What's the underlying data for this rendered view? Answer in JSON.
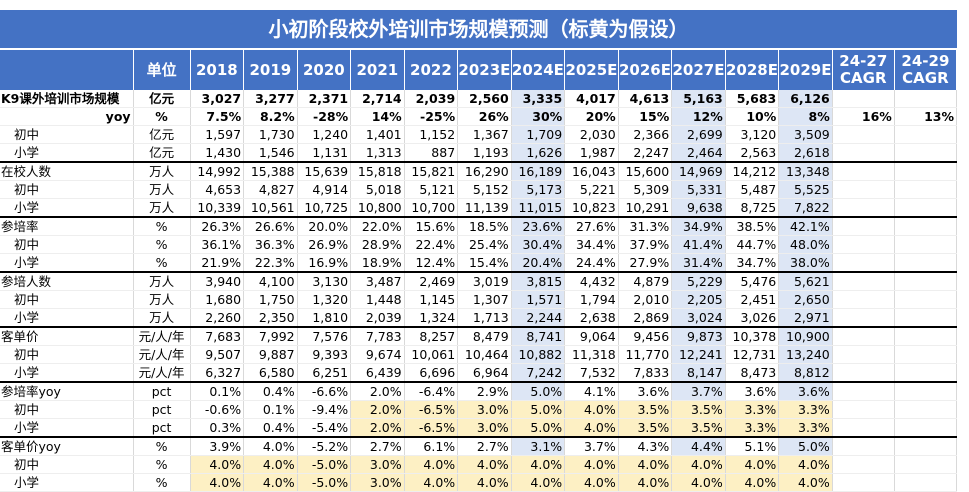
{
  "header": {
    "title": "小初阶段校外培训市场规模预测（标黄为假设）"
  },
  "table": {
    "columns": [
      "单位",
      "2018",
      "2019",
      "2020",
      "2021",
      "2022",
      "2023E",
      "2024E",
      "2025E",
      "2026E",
      "2027E",
      "2028E",
      "2029E",
      "24-27\nCAGR",
      "24-29\nCAGR"
    ],
    "rows": [
      {
        "label": "K9课外培训市场规模",
        "unit": "亿元",
        "values": [
          "3,027",
          "3,277",
          "2,371",
          "2,714",
          "2,039",
          "2,560",
          "3,335",
          "4,017",
          "4,613",
          "5,163",
          "5,683",
          "6,126"
        ]
      },
      {
        "label": "yoy",
        "unit": "%",
        "values": [
          "7.5%",
          "8.2%",
          "-28%",
          "14%",
          "-25%",
          "26%",
          "30%",
          "20%",
          "15%",
          "12%",
          "10%",
          "8%"
        ],
        "cagr": [
          "16%",
          "13%"
        ]
      },
      {
        "label": "初中",
        "unit": "亿元",
        "values": [
          "1,597",
          "1,730",
          "1,240",
          "1,401",
          "1,152",
          "1,367",
          "1,709",
          "2,030",
          "2,366",
          "2,699",
          "3,120",
          "3,509"
        ]
      },
      {
        "label": "小学",
        "unit": "亿元",
        "values": [
          "1,430",
          "1,546",
          "1,131",
          "1,313",
          "887",
          "1,193",
          "1,626",
          "1,987",
          "2,247",
          "2,464",
          "2,563",
          "2,618"
        ]
      },
      {
        "label": "在校人数",
        "unit": "万人",
        "values": [
          "14,992",
          "15,388",
          "15,639",
          "15,818",
          "15,821",
          "16,290",
          "16,189",
          "16,043",
          "15,600",
          "14,969",
          "14,212",
          "13,348"
        ]
      },
      {
        "label": "初中",
        "unit": "万人",
        "values": [
          "4,653",
          "4,827",
          "4,914",
          "5,018",
          "5,121",
          "5,152",
          "5,173",
          "5,221",
          "5,309",
          "5,331",
          "5,487",
          "5,525"
        ]
      },
      {
        "label": "小学",
        "unit": "万人",
        "values": [
          "10,339",
          "10,561",
          "10,725",
          "10,800",
          "10,700",
          "11,139",
          "11,015",
          "10,823",
          "10,291",
          "9,638",
          "8,725",
          "7,822"
        ]
      },
      {
        "label": "参培率",
        "unit": "%",
        "values": [
          "26.3%",
          "26.6%",
          "20.0%",
          "22.0%",
          "15.6%",
          "18.5%",
          "23.6%",
          "27.6%",
          "31.3%",
          "34.9%",
          "38.5%",
          "42.1%"
        ]
      },
      {
        "label": "初中",
        "unit": "%",
        "values": [
          "36.1%",
          "36.3%",
          "26.9%",
          "28.9%",
          "22.4%",
          "25.4%",
          "30.4%",
          "34.4%",
          "37.9%",
          "41.4%",
          "44.7%",
          "48.0%"
        ]
      },
      {
        "label": "小学",
        "unit": "%",
        "values": [
          "21.9%",
          "22.3%",
          "16.9%",
          "18.9%",
          "12.4%",
          "15.4%",
          "20.4%",
          "24.4%",
          "27.9%",
          "31.4%",
          "34.7%",
          "38.0%"
        ]
      },
      {
        "label": "参培人数",
        "unit": "万人",
        "values": [
          "3,940",
          "4,100",
          "3,130",
          "3,487",
          "2,469",
          "3,019",
          "3,815",
          "4,432",
          "4,879",
          "5,229",
          "5,476",
          "5,621"
        ]
      },
      {
        "label": "初中",
        "unit": "万人",
        "values": [
          "1,680",
          "1,750",
          "1,320",
          "1,448",
          "1,145",
          "1,307",
          "1,571",
          "1,794",
          "2,010",
          "2,205",
          "2,451",
          "2,650"
        ]
      },
      {
        "label": "小学",
        "unit": "万人",
        "values": [
          "2,260",
          "2,350",
          "1,810",
          "2,039",
          "1,324",
          "1,713",
          "2,244",
          "2,638",
          "2,869",
          "3,024",
          "3,026",
          "2,971"
        ]
      },
      {
        "label": "客单价",
        "unit": "元/人/年",
        "values": [
          "7,683",
          "7,992",
          "7,576",
          "7,783",
          "8,257",
          "8,479",
          "8,741",
          "9,064",
          "9,456",
          "9,873",
          "10,378",
          "10,900"
        ]
      },
      {
        "label": "初中",
        "unit": "元/人/年",
        "values": [
          "9,507",
          "9,887",
          "9,393",
          "9,674",
          "10,061",
          "10,464",
          "10,882",
          "11,318",
          "11,770",
          "12,241",
          "12,731",
          "13,240"
        ]
      },
      {
        "label": "小学",
        "unit": "元/人/年",
        "values": [
          "6,327",
          "6,580",
          "6,251",
          "6,439",
          "6,696",
          "6,964",
          "7,242",
          "7,532",
          "7,833",
          "8,147",
          "8,473",
          "8,812"
        ]
      },
      {
        "label": "参培率yoy",
        "unit": "pct",
        "values": [
          "0.1%",
          "0.4%",
          "-6.6%",
          "2.0%",
          "-6.4%",
          "2.9%",
          "5.0%",
          "4.1%",
          "3.6%",
          "3.7%",
          "3.6%",
          "3.6%"
        ]
      },
      {
        "label": "初中",
        "unit": "pct",
        "values": [
          "-0.6%",
          "0.1%",
          "-9.4%",
          "2.0%",
          "-6.5%",
          "3.0%",
          "5.0%",
          "4.0%",
          "3.5%",
          "3.5%",
          "3.3%",
          "3.3%"
        ]
      },
      {
        "label": "小学",
        "unit": "pct",
        "values": [
          "0.3%",
          "0.4%",
          "-5.4%",
          "2.0%",
          "-6.5%",
          "3.0%",
          "5.0%",
          "4.0%",
          "3.5%",
          "3.5%",
          "3.3%",
          "3.3%"
        ]
      },
      {
        "label": "客单价yoy",
        "unit": "%",
        "values": [
          "3.9%",
          "4.0%",
          "-5.2%",
          "2.7%",
          "6.1%",
          "2.7%",
          "3.1%",
          "3.7%",
          "4.3%",
          "4.4%",
          "5.1%",
          "5.0%"
        ]
      },
      {
        "label": "初中",
        "unit": "%",
        "values": [
          "4.0%",
          "4.0%",
          "-5.0%",
          "3.0%",
          "4.0%",
          "4.0%",
          "4.0%",
          "4.0%",
          "4.0%",
          "4.0%",
          "4.0%",
          "4.0%"
        ]
      },
      {
        "label": "小学",
        "unit": "%",
        "values": [
          "4.0%",
          "4.0%",
          "-5.0%",
          "3.0%",
          "4.0%",
          "4.0%",
          "4.0%",
          "4.0%",
          "4.0%",
          "4.0%",
          "4.0%",
          "4.0%"
        ]
      }
    ]
  }
}
